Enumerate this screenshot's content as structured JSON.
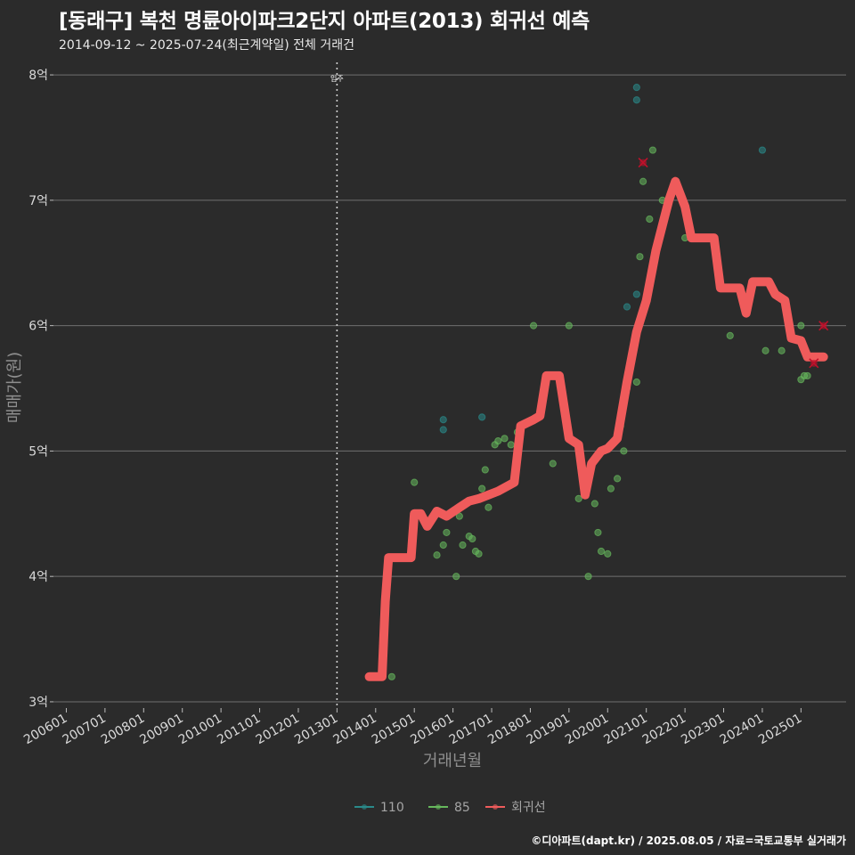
{
  "header": {
    "title": "[동래구] 복천 명륜아이파크2단지 아파트(2013) 회귀선 예측",
    "subtitle": "2014-09-12 ~ 2025-07-24(최근계약일) 전체 거래건"
  },
  "footer": {
    "credit": "©디아파트(dapt.kr) / 2025.08.05 / 자료=국토교통부 실거래가"
  },
  "colors": {
    "background": "#2b2b2b",
    "grid": "#6f6f6f",
    "series_110": "#2a8a8a",
    "series_85": "#66b85c",
    "series_regression": "#ef5b5b",
    "outlier_marker": "#c0102a"
  },
  "chart_data": {
    "type": "scatter",
    "title": "[동래구] 복천 명륜아이파크2단지 아파트(2013) 회귀선 예측",
    "xlabel": "거래년월",
    "ylabel": "매매가(원)",
    "x_ticks": [
      "200601",
      "200701",
      "200801",
      "200901",
      "201001",
      "201101",
      "201201",
      "201301",
      "201401",
      "201501",
      "201601",
      "201701",
      "201801",
      "201901",
      "202001",
      "202101",
      "202201",
      "202301",
      "202401",
      "202501"
    ],
    "xlim": [
      "2005-09",
      "2026-03"
    ],
    "ylim": [
      3,
      8
    ],
    "y_ticks": [
      3,
      4,
      5,
      6,
      7,
      8
    ],
    "y_tick_labels": [
      "3억",
      "4억",
      "5억",
      "6억",
      "7억",
      "8억"
    ],
    "y_unit": "억원",
    "grid": true,
    "legend_position": "bottom",
    "annotations": [
      {
        "x": "2013-01",
        "label": "입주",
        "style": "dotted-vertical-line"
      }
    ],
    "series": [
      {
        "name": "110",
        "type": "scatter",
        "points": [
          [
            "2020-10",
            6.25
          ],
          [
            "2020-10",
            7.9
          ],
          [
            "2020-10",
            7.8
          ],
          [
            "2020-07",
            6.15
          ],
          [
            "2015-10",
            5.25
          ],
          [
            "2015-10",
            5.17
          ],
          [
            "2016-10",
            5.27
          ],
          [
            "2024-01",
            7.4
          ]
        ]
      },
      {
        "name": "85",
        "type": "scatter",
        "points": [
          [
            "2014-06",
            3.2
          ],
          [
            "2015-01",
            4.75
          ],
          [
            "2015-08",
            4.17
          ],
          [
            "2015-10",
            4.25
          ],
          [
            "2015-11",
            4.35
          ],
          [
            "2016-02",
            4.0
          ],
          [
            "2016-03",
            4.48
          ],
          [
            "2016-04",
            4.25
          ],
          [
            "2016-06",
            4.32
          ],
          [
            "2016-07",
            4.3
          ],
          [
            "2016-08",
            4.2
          ],
          [
            "2016-09",
            4.18
          ],
          [
            "2016-10",
            4.7
          ],
          [
            "2016-11",
            4.85
          ],
          [
            "2016-12",
            4.55
          ],
          [
            "2017-02",
            5.05
          ],
          [
            "2017-03",
            5.08
          ],
          [
            "2017-05",
            5.1
          ],
          [
            "2017-07",
            5.05
          ],
          [
            "2017-09",
            5.15
          ],
          [
            "2018-02",
            6.0
          ],
          [
            "2018-08",
            4.9
          ],
          [
            "2019-01",
            6.0
          ],
          [
            "2019-04",
            4.62
          ],
          [
            "2019-06",
            4.7
          ],
          [
            "2019-07",
            4.0
          ],
          [
            "2019-09",
            4.58
          ],
          [
            "2019-10",
            4.35
          ],
          [
            "2019-11",
            4.2
          ],
          [
            "2020-01",
            4.18
          ],
          [
            "2020-02",
            4.7
          ],
          [
            "2020-04",
            4.78
          ],
          [
            "2020-05",
            5.2
          ],
          [
            "2020-06",
            5.0
          ],
          [
            "2020-07",
            5.5
          ],
          [
            "2020-08",
            5.65
          ],
          [
            "2020-09",
            5.8
          ],
          [
            "2020-10",
            5.55
          ],
          [
            "2020-11",
            6.55
          ],
          [
            "2020-12",
            7.15
          ],
          [
            "2021-02",
            6.85
          ],
          [
            "2021-03",
            7.4
          ],
          [
            "2021-06",
            7.0
          ],
          [
            "2022-01",
            6.7
          ],
          [
            "2023-03",
            5.92
          ],
          [
            "2023-06",
            6.3
          ],
          [
            "2024-02",
            5.8
          ],
          [
            "2024-07",
            5.8
          ],
          [
            "2025-01",
            6.0
          ],
          [
            "2025-02",
            5.6
          ],
          [
            "2025-03",
            5.6
          ],
          [
            "2025-01",
            5.57
          ],
          [
            "2025-04",
            5.75
          ]
        ]
      },
      {
        "name": "회귀선",
        "type": "line",
        "points": [
          [
            "2013-11",
            3.2
          ],
          [
            "2014-03",
            3.2
          ],
          [
            "2014-04",
            3.8
          ],
          [
            "2014-05",
            4.15
          ],
          [
            "2014-12",
            4.15
          ],
          [
            "2015-01",
            4.5
          ],
          [
            "2015-03",
            4.5
          ],
          [
            "2015-05",
            4.4
          ],
          [
            "2015-08",
            4.52
          ],
          [
            "2015-11",
            4.48
          ],
          [
            "2016-03",
            4.55
          ],
          [
            "2016-06",
            4.6
          ],
          [
            "2016-09",
            4.62
          ],
          [
            "2017-03",
            4.68
          ],
          [
            "2017-08",
            4.75
          ],
          [
            "2017-10",
            5.2
          ],
          [
            "2018-02",
            5.25
          ],
          [
            "2018-04",
            5.28
          ],
          [
            "2018-06",
            5.6
          ],
          [
            "2018-10",
            5.6
          ],
          [
            "2019-01",
            5.1
          ],
          [
            "2019-04",
            5.05
          ],
          [
            "2019-06",
            4.65
          ],
          [
            "2019-08",
            4.9
          ],
          [
            "2019-11",
            5.0
          ],
          [
            "2020-01",
            5.02
          ],
          [
            "2020-04",
            5.1
          ],
          [
            "2020-07",
            5.55
          ],
          [
            "2020-10",
            5.95
          ],
          [
            "2021-01",
            6.2
          ],
          [
            "2021-04",
            6.6
          ],
          [
            "2021-08",
            7.0
          ],
          [
            "2021-10",
            7.15
          ],
          [
            "2022-01",
            6.95
          ],
          [
            "2022-03",
            6.7
          ],
          [
            "2022-10",
            6.7
          ],
          [
            "2022-12",
            6.3
          ],
          [
            "2023-06",
            6.3
          ],
          [
            "2023-08",
            6.1
          ],
          [
            "2023-10",
            6.35
          ],
          [
            "2024-03",
            6.35
          ],
          [
            "2024-05",
            6.25
          ],
          [
            "2024-08",
            6.2
          ],
          [
            "2024-10",
            5.9
          ],
          [
            "2025-01",
            5.88
          ],
          [
            "2025-03",
            5.75
          ],
          [
            "2025-08",
            5.75
          ]
        ]
      }
    ],
    "outliers": [
      [
        "2020-12",
        7.3
      ],
      [
        "2025-08",
        6.0
      ],
      [
        "2025-05",
        5.7
      ]
    ]
  }
}
